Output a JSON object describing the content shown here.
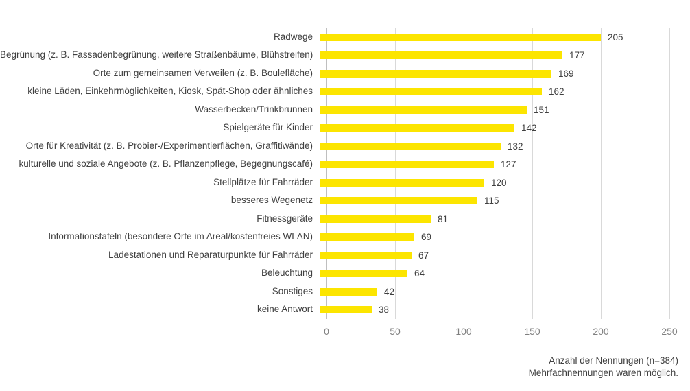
{
  "chart_data": {
    "type": "bar",
    "orientation": "horizontal",
    "title": "",
    "xlabel": "",
    "ylabel": "",
    "categories": [
      "Radwege",
      "Begrünung (z. B. Fassadenbegrünung, weitere Straßenbäume, Blühstreifen)",
      "Orte zum gemeinsamen Verweilen (z. B. Boulefläche)",
      "kleine Läden, Einkehrmöglichkeiten, Kiosk, Spät-Shop oder ähnliches",
      "Wasserbecken/Trinkbrunnen",
      "Spielgeräte für Kinder",
      "Orte für Kreativität (z. B. Probier-/Experimentierflächen, Graffitiwände)",
      "kulturelle und soziale Angebote (z. B. Pflanzenpflege, Begegnungscafé)",
      "Stellplätze für Fahrräder",
      "besseres Wegenetz",
      "Fitnessgeräte",
      "Informationstafeln (besondere Orte im Areal/kostenfreies WLAN)",
      "Ladestationen und Reparaturpunkte für Fahrräder",
      "Beleuchtung",
      "Sonstiges",
      "keine Antwort"
    ],
    "values": [
      205,
      177,
      169,
      162,
      151,
      142,
      132,
      127,
      120,
      115,
      81,
      69,
      67,
      64,
      42,
      38
    ],
    "xlim": [
      0,
      250
    ],
    "x_ticks": [
      0,
      50,
      100,
      150,
      200,
      250
    ],
    "grid": true,
    "legend": false,
    "bar_color": "#fce500",
    "gridline_color": "#d9d9d9",
    "axis_line_color": "#bfbfbf",
    "label_color": "#404040",
    "tick_color": "#7f7f7f"
  },
  "footer": {
    "line1": "Anzahl der Nennungen (n=384)",
    "line2": "Mehrfachnennungen waren möglich."
  }
}
